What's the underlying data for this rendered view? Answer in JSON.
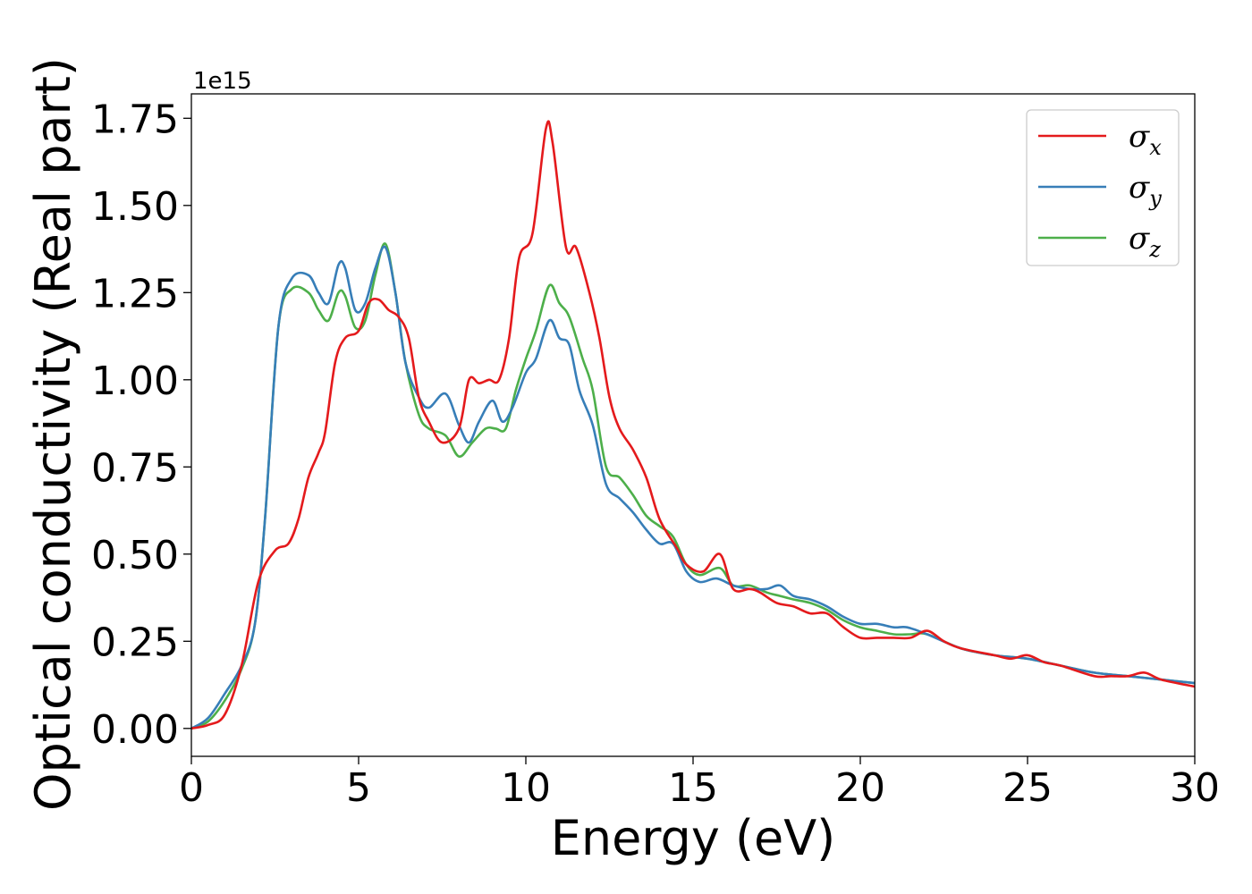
{
  "chart_data": {
    "type": "line",
    "xlabel": "Energy (eV)",
    "ylabel": "Optical conductivity (Real part)",
    "y_offset_label": "1e15",
    "xlim": [
      0,
      30
    ],
    "ylim": [
      -0.08,
      1.82
    ],
    "y_scale_factor": 1000000000000000.0,
    "grid": false,
    "legend_position": "upper-right",
    "x_ticks": [
      0,
      5,
      10,
      15,
      20,
      25,
      30
    ],
    "x_tick_labels": [
      "0",
      "5",
      "10",
      "15",
      "20",
      "25",
      "30"
    ],
    "y_ticks": [
      0,
      0.25,
      0.5,
      0.75,
      1.0,
      1.25,
      1.5,
      1.75
    ],
    "y_tick_labels": [
      "0.00",
      "0.25",
      "0.50",
      "0.75",
      "1.00",
      "1.25",
      "1.50",
      "1.75"
    ],
    "series": [
      {
        "name": "σx",
        "legend_base": "σ",
        "legend_sub": "x",
        "color": "#e41a1c",
        "points": [
          [
            0,
            0.0
          ],
          [
            0.5,
            0.01
          ],
          [
            1.0,
            0.04
          ],
          [
            1.5,
            0.18
          ],
          [
            2.0,
            0.42
          ],
          [
            2.5,
            0.51
          ],
          [
            2.9,
            0.53
          ],
          [
            3.2,
            0.6
          ],
          [
            3.5,
            0.72
          ],
          [
            3.8,
            0.79
          ],
          [
            4.0,
            0.85
          ],
          [
            4.3,
            1.05
          ],
          [
            4.6,
            1.12
          ],
          [
            5.0,
            1.14
          ],
          [
            5.3,
            1.22
          ],
          [
            5.6,
            1.23
          ],
          [
            5.9,
            1.2
          ],
          [
            6.2,
            1.18
          ],
          [
            6.5,
            1.12
          ],
          [
            6.8,
            0.95
          ],
          [
            7.1,
            0.88
          ],
          [
            7.5,
            0.82
          ],
          [
            8.0,
            0.86
          ],
          [
            8.3,
            1.0
          ],
          [
            8.6,
            0.99
          ],
          [
            8.9,
            1.0
          ],
          [
            9.2,
            1.0
          ],
          [
            9.5,
            1.12
          ],
          [
            9.8,
            1.35
          ],
          [
            10.2,
            1.42
          ],
          [
            10.6,
            1.72
          ],
          [
            10.8,
            1.68
          ],
          [
            11.2,
            1.38
          ],
          [
            11.5,
            1.38
          ],
          [
            11.9,
            1.25
          ],
          [
            12.2,
            1.12
          ],
          [
            12.5,
            0.95
          ],
          [
            12.8,
            0.86
          ],
          [
            13.2,
            0.8
          ],
          [
            13.6,
            0.72
          ],
          [
            14.0,
            0.6
          ],
          [
            14.5,
            0.52
          ],
          [
            14.8,
            0.47
          ],
          [
            15.3,
            0.45
          ],
          [
            15.8,
            0.5
          ],
          [
            16.2,
            0.4
          ],
          [
            16.7,
            0.4
          ],
          [
            17.0,
            0.39
          ],
          [
            17.5,
            0.36
          ],
          [
            18.0,
            0.35
          ],
          [
            18.5,
            0.33
          ],
          [
            19.0,
            0.33
          ],
          [
            19.5,
            0.29
          ],
          [
            20.0,
            0.26
          ],
          [
            20.5,
            0.26
          ],
          [
            21.0,
            0.26
          ],
          [
            21.5,
            0.26
          ],
          [
            22.0,
            0.28
          ],
          [
            22.5,
            0.25
          ],
          [
            23.0,
            0.23
          ],
          [
            24.0,
            0.21
          ],
          [
            24.5,
            0.2
          ],
          [
            25.0,
            0.21
          ],
          [
            25.5,
            0.19
          ],
          [
            26.0,
            0.18
          ],
          [
            27.0,
            0.15
          ],
          [
            27.5,
            0.15
          ],
          [
            28.0,
            0.15
          ],
          [
            28.5,
            0.16
          ],
          [
            29.0,
            0.14
          ],
          [
            30.0,
            0.12
          ]
        ]
      },
      {
        "name": "σy",
        "legend_base": "σ",
        "legend_sub": "y",
        "color": "#377eb8",
        "points": [
          [
            0,
            0.0
          ],
          [
            0.5,
            0.03
          ],
          [
            1.0,
            0.1
          ],
          [
            1.5,
            0.18
          ],
          [
            1.9,
            0.3
          ],
          [
            2.2,
            0.6
          ],
          [
            2.6,
            1.15
          ],
          [
            3.0,
            1.29
          ],
          [
            3.5,
            1.3
          ],
          [
            3.8,
            1.25
          ],
          [
            4.1,
            1.22
          ],
          [
            4.4,
            1.33
          ],
          [
            4.6,
            1.32
          ],
          [
            4.9,
            1.2
          ],
          [
            5.2,
            1.22
          ],
          [
            5.5,
            1.32
          ],
          [
            5.8,
            1.38
          ],
          [
            6.1,
            1.25
          ],
          [
            6.4,
            1.05
          ],
          [
            6.8,
            0.95
          ],
          [
            7.1,
            0.92
          ],
          [
            7.6,
            0.96
          ],
          [
            8.0,
            0.87
          ],
          [
            8.3,
            0.82
          ],
          [
            8.6,
            0.88
          ],
          [
            9.0,
            0.94
          ],
          [
            9.3,
            0.88
          ],
          [
            9.6,
            0.92
          ],
          [
            10.0,
            1.02
          ],
          [
            10.3,
            1.06
          ],
          [
            10.7,
            1.17
          ],
          [
            11.0,
            1.12
          ],
          [
            11.3,
            1.1
          ],
          [
            11.6,
            0.97
          ],
          [
            12.0,
            0.87
          ],
          [
            12.4,
            0.7
          ],
          [
            12.8,
            0.66
          ],
          [
            13.2,
            0.62
          ],
          [
            13.6,
            0.57
          ],
          [
            14.0,
            0.53
          ],
          [
            14.4,
            0.53
          ],
          [
            14.8,
            0.45
          ],
          [
            15.2,
            0.42
          ],
          [
            15.7,
            0.43
          ],
          [
            16.2,
            0.41
          ],
          [
            16.7,
            0.4
          ],
          [
            17.2,
            0.4
          ],
          [
            17.6,
            0.41
          ],
          [
            18.0,
            0.38
          ],
          [
            18.5,
            0.37
          ],
          [
            19.0,
            0.35
          ],
          [
            19.5,
            0.32
          ],
          [
            20.0,
            0.3
          ],
          [
            20.5,
            0.3
          ],
          [
            21.0,
            0.29
          ],
          [
            21.4,
            0.29
          ],
          [
            22.0,
            0.27
          ],
          [
            23.0,
            0.23
          ],
          [
            24.0,
            0.21
          ],
          [
            25.0,
            0.2
          ],
          [
            26.0,
            0.18
          ],
          [
            27.0,
            0.16
          ],
          [
            28.0,
            0.15
          ],
          [
            29.0,
            0.14
          ],
          [
            30.0,
            0.13
          ]
        ]
      },
      {
        "name": "σz",
        "legend_base": "σ",
        "legend_sub": "z",
        "color": "#4daf4a",
        "points": [
          [
            0,
            0.0
          ],
          [
            0.5,
            0.02
          ],
          [
            1.0,
            0.08
          ],
          [
            1.5,
            0.17
          ],
          [
            1.9,
            0.3
          ],
          [
            2.2,
            0.6
          ],
          [
            2.6,
            1.15
          ],
          [
            3.0,
            1.26
          ],
          [
            3.5,
            1.25
          ],
          [
            3.8,
            1.2
          ],
          [
            4.1,
            1.17
          ],
          [
            4.4,
            1.25
          ],
          [
            4.6,
            1.24
          ],
          [
            4.9,
            1.15
          ],
          [
            5.2,
            1.17
          ],
          [
            5.5,
            1.3
          ],
          [
            5.8,
            1.39
          ],
          [
            6.1,
            1.25
          ],
          [
            6.4,
            1.05
          ],
          [
            6.8,
            0.9
          ],
          [
            7.1,
            0.86
          ],
          [
            7.6,
            0.84
          ],
          [
            8.0,
            0.78
          ],
          [
            8.4,
            0.82
          ],
          [
            8.8,
            0.86
          ],
          [
            9.1,
            0.86
          ],
          [
            9.4,
            0.86
          ],
          [
            9.7,
            0.97
          ],
          [
            10.0,
            1.06
          ],
          [
            10.3,
            1.14
          ],
          [
            10.7,
            1.27
          ],
          [
            11.0,
            1.22
          ],
          [
            11.3,
            1.18
          ],
          [
            11.7,
            1.06
          ],
          [
            12.0,
            0.97
          ],
          [
            12.4,
            0.75
          ],
          [
            12.8,
            0.72
          ],
          [
            13.2,
            0.67
          ],
          [
            13.6,
            0.61
          ],
          [
            14.0,
            0.58
          ],
          [
            14.4,
            0.55
          ],
          [
            14.8,
            0.47
          ],
          [
            15.2,
            0.44
          ],
          [
            15.8,
            0.46
          ],
          [
            16.2,
            0.41
          ],
          [
            16.7,
            0.41
          ],
          [
            17.2,
            0.39
          ],
          [
            17.6,
            0.38
          ],
          [
            18.0,
            0.37
          ],
          [
            18.5,
            0.36
          ],
          [
            19.0,
            0.34
          ],
          [
            19.5,
            0.31
          ],
          [
            20.0,
            0.29
          ],
          [
            20.5,
            0.28
          ],
          [
            21.0,
            0.27
          ],
          [
            21.5,
            0.27
          ],
          [
            22.0,
            0.27
          ],
          [
            23.0,
            0.23
          ],
          [
            24.0,
            0.21
          ],
          [
            25.0,
            0.2
          ],
          [
            26.0,
            0.18
          ],
          [
            27.0,
            0.16
          ],
          [
            28.0,
            0.15
          ],
          [
            29.0,
            0.14
          ],
          [
            30.0,
            0.13
          ]
        ]
      }
    ]
  }
}
